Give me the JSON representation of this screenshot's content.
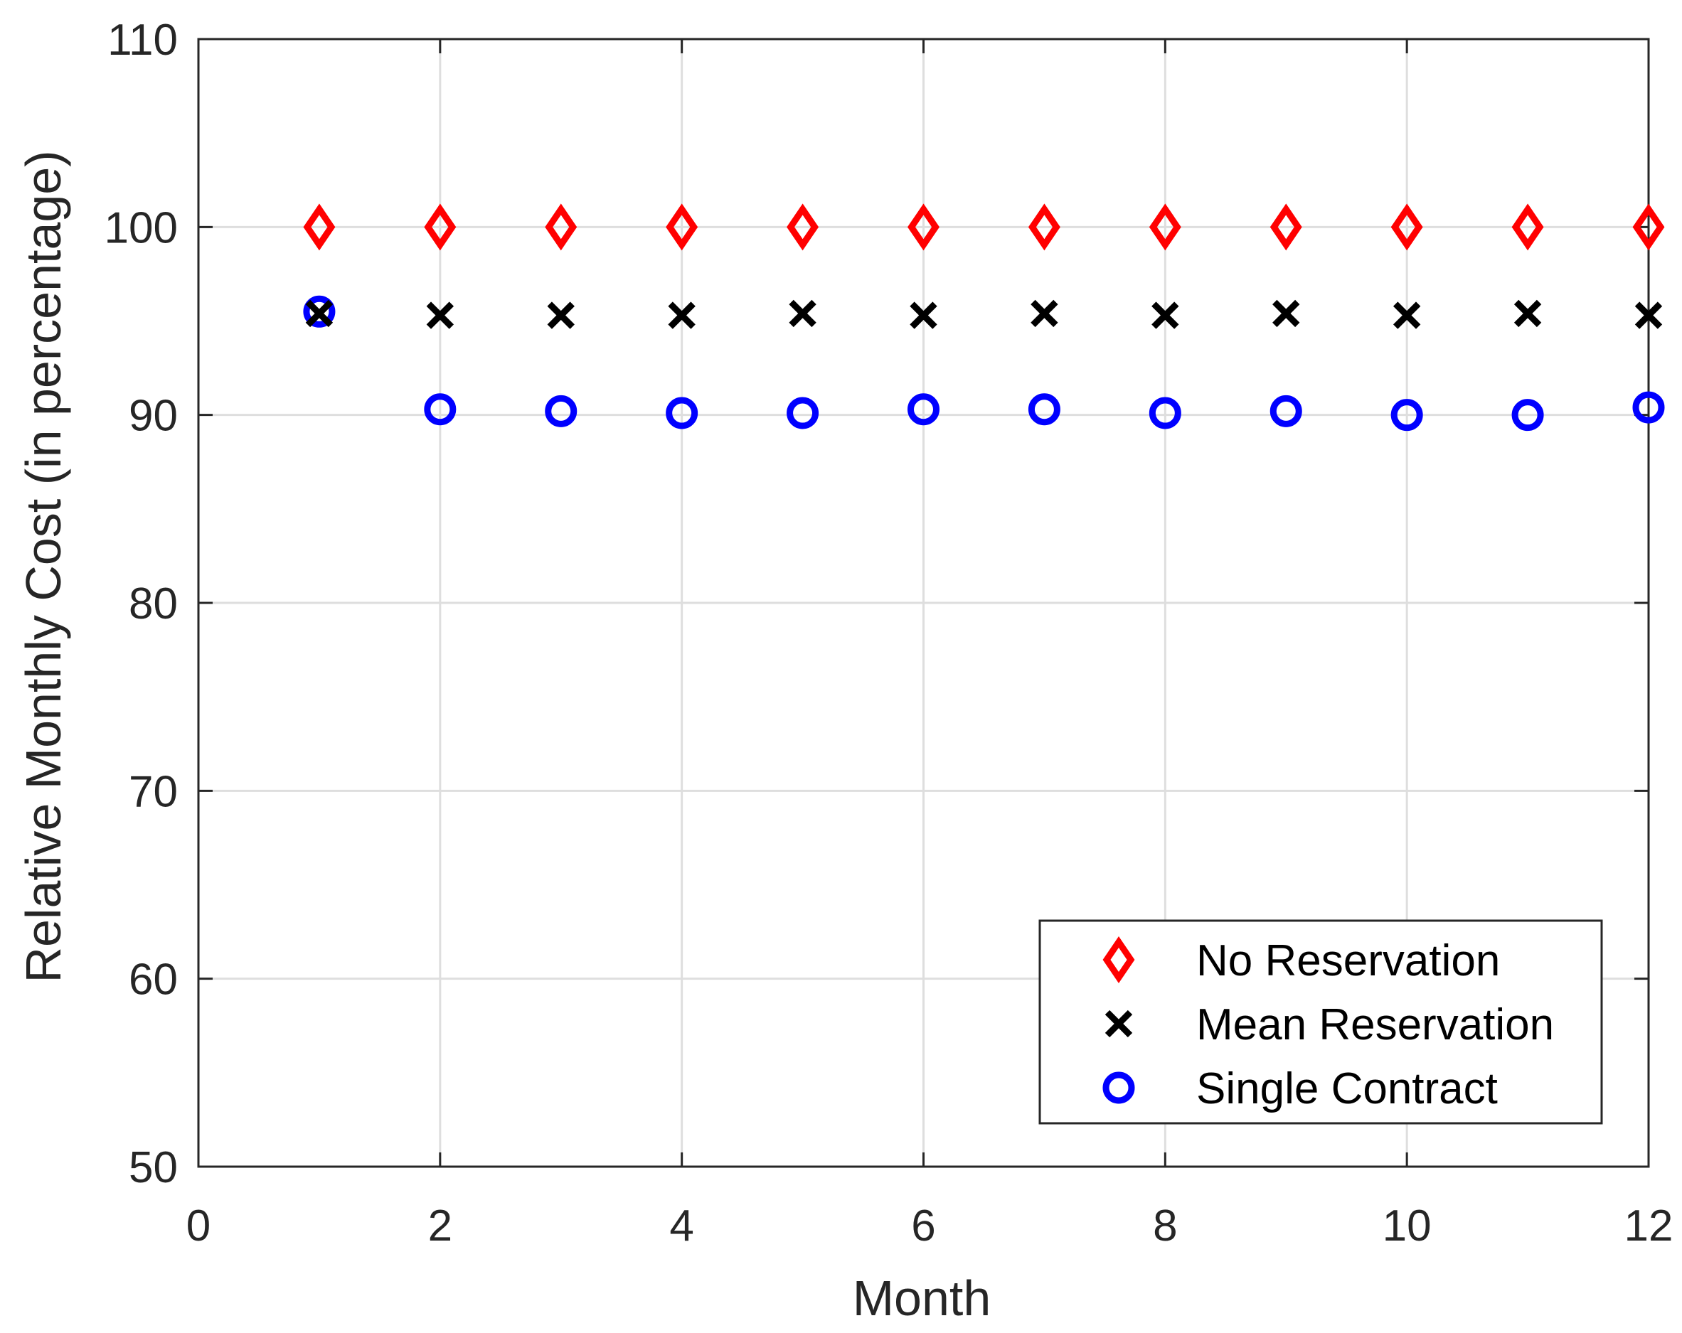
{
  "chart_data": {
    "type": "scatter",
    "title": "",
    "xlabel": "Month",
    "ylabel": "Relative Monthly Cost (in percentage)",
    "xlim": [
      0,
      12
    ],
    "ylim": [
      50,
      110
    ],
    "xticks": [
      0,
      2,
      4,
      6,
      8,
      10,
      12
    ],
    "yticks": [
      50,
      60,
      70,
      80,
      90,
      100,
      110
    ],
    "grid": true,
    "legend_position": "bottom-right",
    "x": [
      1,
      2,
      3,
      4,
      5,
      6,
      7,
      8,
      9,
      10,
      11,
      12
    ],
    "series": [
      {
        "name": "No Reservation",
        "marker": "diamond",
        "color": "#ff0000",
        "values": [
          100,
          100,
          100,
          100,
          100,
          100,
          100,
          100,
          100,
          100,
          100,
          100
        ]
      },
      {
        "name": "Mean Reservation",
        "marker": "x",
        "color": "#000000",
        "values": [
          95.4,
          95.3,
          95.3,
          95.3,
          95.4,
          95.3,
          95.4,
          95.3,
          95.4,
          95.3,
          95.4,
          95.3
        ]
      },
      {
        "name": "Single Contract",
        "marker": "circle",
        "color": "#0000ff",
        "values": [
          95.5,
          90.3,
          90.2,
          90.1,
          90.1,
          90.3,
          90.3,
          90.1,
          90.2,
          90.0,
          90.0,
          90.4
        ]
      }
    ]
  }
}
